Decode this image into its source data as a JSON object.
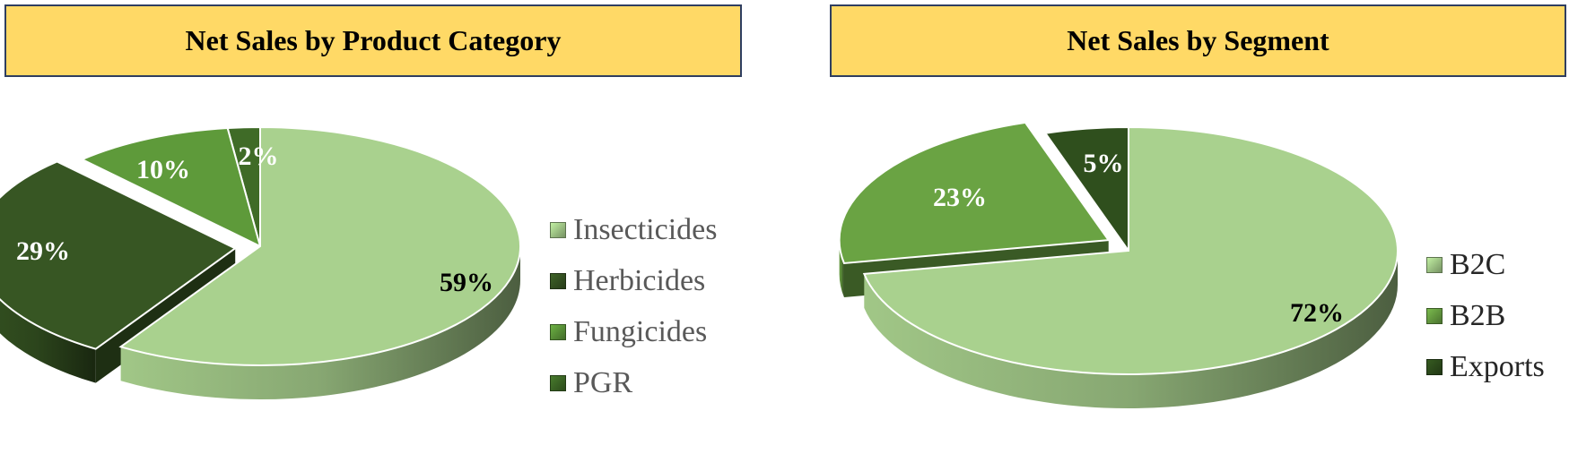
{
  "colors": {
    "title_bg": "#FFD966",
    "title_border": "#2F3E60",
    "light_green": "#A9D18E",
    "mid_green": "#70AD47",
    "dark_green": "#385723"
  },
  "chart_data": [
    {
      "type": "pie",
      "title": "Net Sales by Product Category",
      "categories": [
        "Insecticides",
        "Herbicides",
        "Fungicides",
        "PGR"
      ],
      "values": [
        59,
        29,
        10,
        2
      ],
      "labels": [
        "59%",
        "29%",
        "10%",
        "2%"
      ],
      "colors": [
        "#A9D18E",
        "#375623",
        "#5E9A3A",
        "#3F6B27"
      ],
      "label_colors": [
        "#000000",
        "#ffffff",
        "#ffffff",
        "#ffffff"
      ],
      "exploded": [
        false,
        true,
        false,
        false
      ],
      "legend_position": "right"
    },
    {
      "type": "pie",
      "title": "Net Sales by Segment",
      "categories": [
        "B2C",
        "B2B",
        "Exports"
      ],
      "values": [
        72,
        23,
        5
      ],
      "labels": [
        "72%",
        "23%",
        "5%"
      ],
      "colors": [
        "#A9D18E",
        "#6AA343",
        "#2F4F1D"
      ],
      "label_colors": [
        "#000000",
        "#ffffff",
        "#ffffff"
      ],
      "exploded": [
        false,
        true,
        false
      ],
      "legend_position": "right"
    }
  ]
}
